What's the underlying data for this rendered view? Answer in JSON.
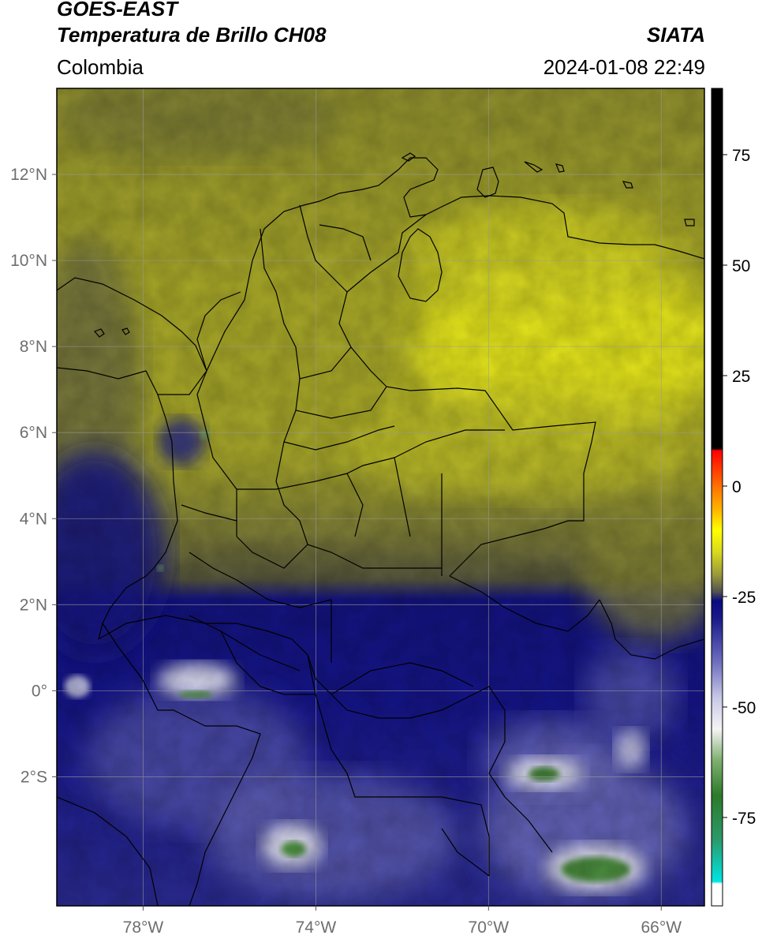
{
  "header": {
    "satellite": "GOES-EAST",
    "product": "Temperatura de Brillo CH08",
    "region": "Colombia",
    "agency": "SIATA",
    "datetime": "2024-01-08 22:49"
  },
  "map": {
    "lon_range": [
      -80,
      -65
    ],
    "lat_range": [
      -5,
      14
    ],
    "lat_ticks": [
      {
        "value": 12,
        "label": "12°N"
      },
      {
        "value": 10,
        "label": "10°N"
      },
      {
        "value": 8,
        "label": "8°N"
      },
      {
        "value": 6,
        "label": "6°N"
      },
      {
        "value": 4,
        "label": "4°N"
      },
      {
        "value": 2,
        "label": "2°N"
      },
      {
        "value": 0,
        "label": "0°"
      },
      {
        "value": -2,
        "label": "2°S"
      }
    ],
    "lon_ticks": [
      {
        "value": -78,
        "label": "78°W"
      },
      {
        "value": -74,
        "label": "74°W"
      },
      {
        "value": -70,
        "label": "70°W"
      },
      {
        "value": -66,
        "label": "66°W"
      }
    ],
    "gridlines": true
  },
  "colorbar": {
    "range": [
      -95,
      90
    ],
    "ticks": [
      {
        "value": 75,
        "label": "75"
      },
      {
        "value": 50,
        "label": "50"
      },
      {
        "value": 25,
        "label": "25"
      },
      {
        "value": 0,
        "label": "0"
      },
      {
        "value": -25,
        "label": "-25"
      },
      {
        "value": -50,
        "label": "-50"
      },
      {
        "value": -75,
        "label": "-75"
      }
    ],
    "stops": [
      {
        "value": -95,
        "color": "#ffffff"
      },
      {
        "value": -90,
        "color": "#ffffff"
      },
      {
        "value": -89.5,
        "color": "#00e5e5"
      },
      {
        "value": -80,
        "color": "#2a9a6a"
      },
      {
        "value": -70,
        "color": "#2d7a2a"
      },
      {
        "value": -62,
        "color": "#7fb070"
      },
      {
        "value": -55,
        "color": "#f4f4f4"
      },
      {
        "value": -48,
        "color": "#c8c8e8"
      },
      {
        "value": -40,
        "color": "#7070c0"
      },
      {
        "value": -30,
        "color": "#1a1a8a"
      },
      {
        "value": -26,
        "color": "#0a0a80"
      },
      {
        "value": -24,
        "color": "#505050"
      },
      {
        "value": -20,
        "color": "#9a9a3a"
      },
      {
        "value": -15,
        "color": "#d8d820"
      },
      {
        "value": -10,
        "color": "#ffff00"
      },
      {
        "value": -5,
        "color": "#ffb000"
      },
      {
        "value": 0,
        "color": "#ff7000"
      },
      {
        "value": 8,
        "color": "#ff0000"
      },
      {
        "value": 8.5,
        "color": "#000000"
      },
      {
        "value": 90,
        "color": "#000000"
      }
    ]
  }
}
